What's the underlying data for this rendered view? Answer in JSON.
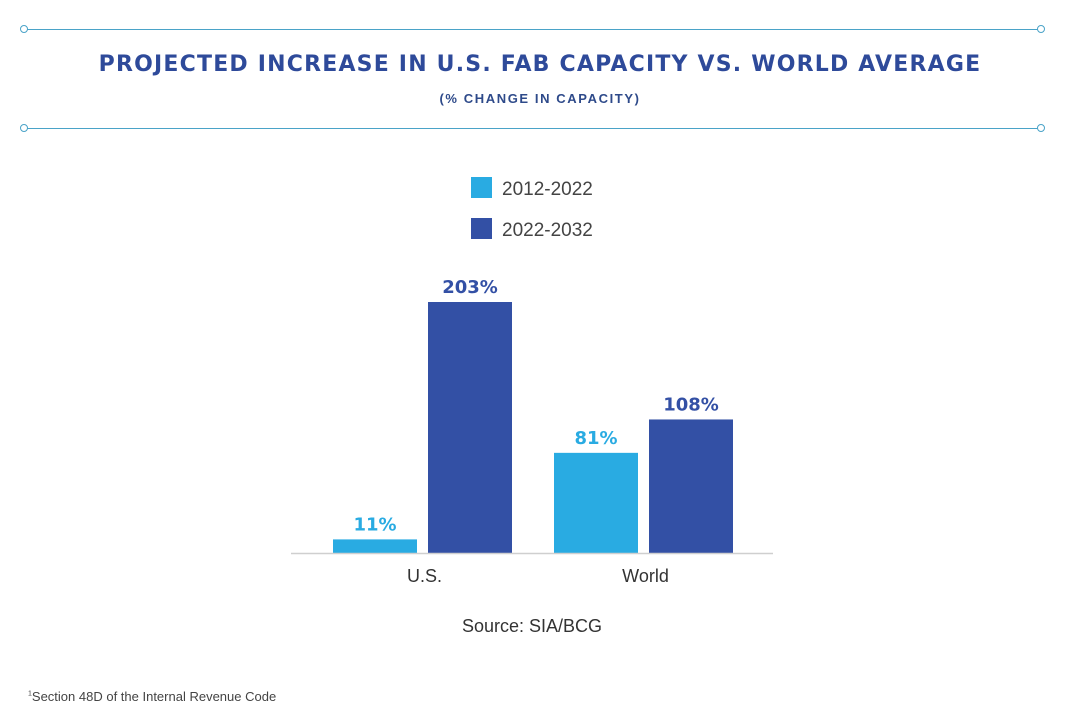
{
  "chart_data": {
    "type": "bar",
    "title": "PROJECTED INCREASE IN U.S. FAB CAPACITY VS. WORLD AVERAGE",
    "subtitle": "(% CHANGE IN CAPACITY)",
    "categories": [
      "U.S.",
      "World"
    ],
    "series": [
      {
        "name": "2012-2022",
        "values": [
          11,
          81
        ],
        "labels": [
          "11%",
          "81%"
        ],
        "color": "#29abe2"
      },
      {
        "name": "2022-2032",
        "values": [
          203,
          108
        ],
        "labels": [
          "203%",
          "108%"
        ],
        "color": "#3350a5"
      }
    ],
    "ylim": [
      0,
      210
    ],
    "grid": false,
    "legend": "top-center",
    "source": "Source: SIA/BCG"
  },
  "footnote": {
    "marker": "1",
    "text": "Section 48D of the Internal Revenue Code"
  }
}
